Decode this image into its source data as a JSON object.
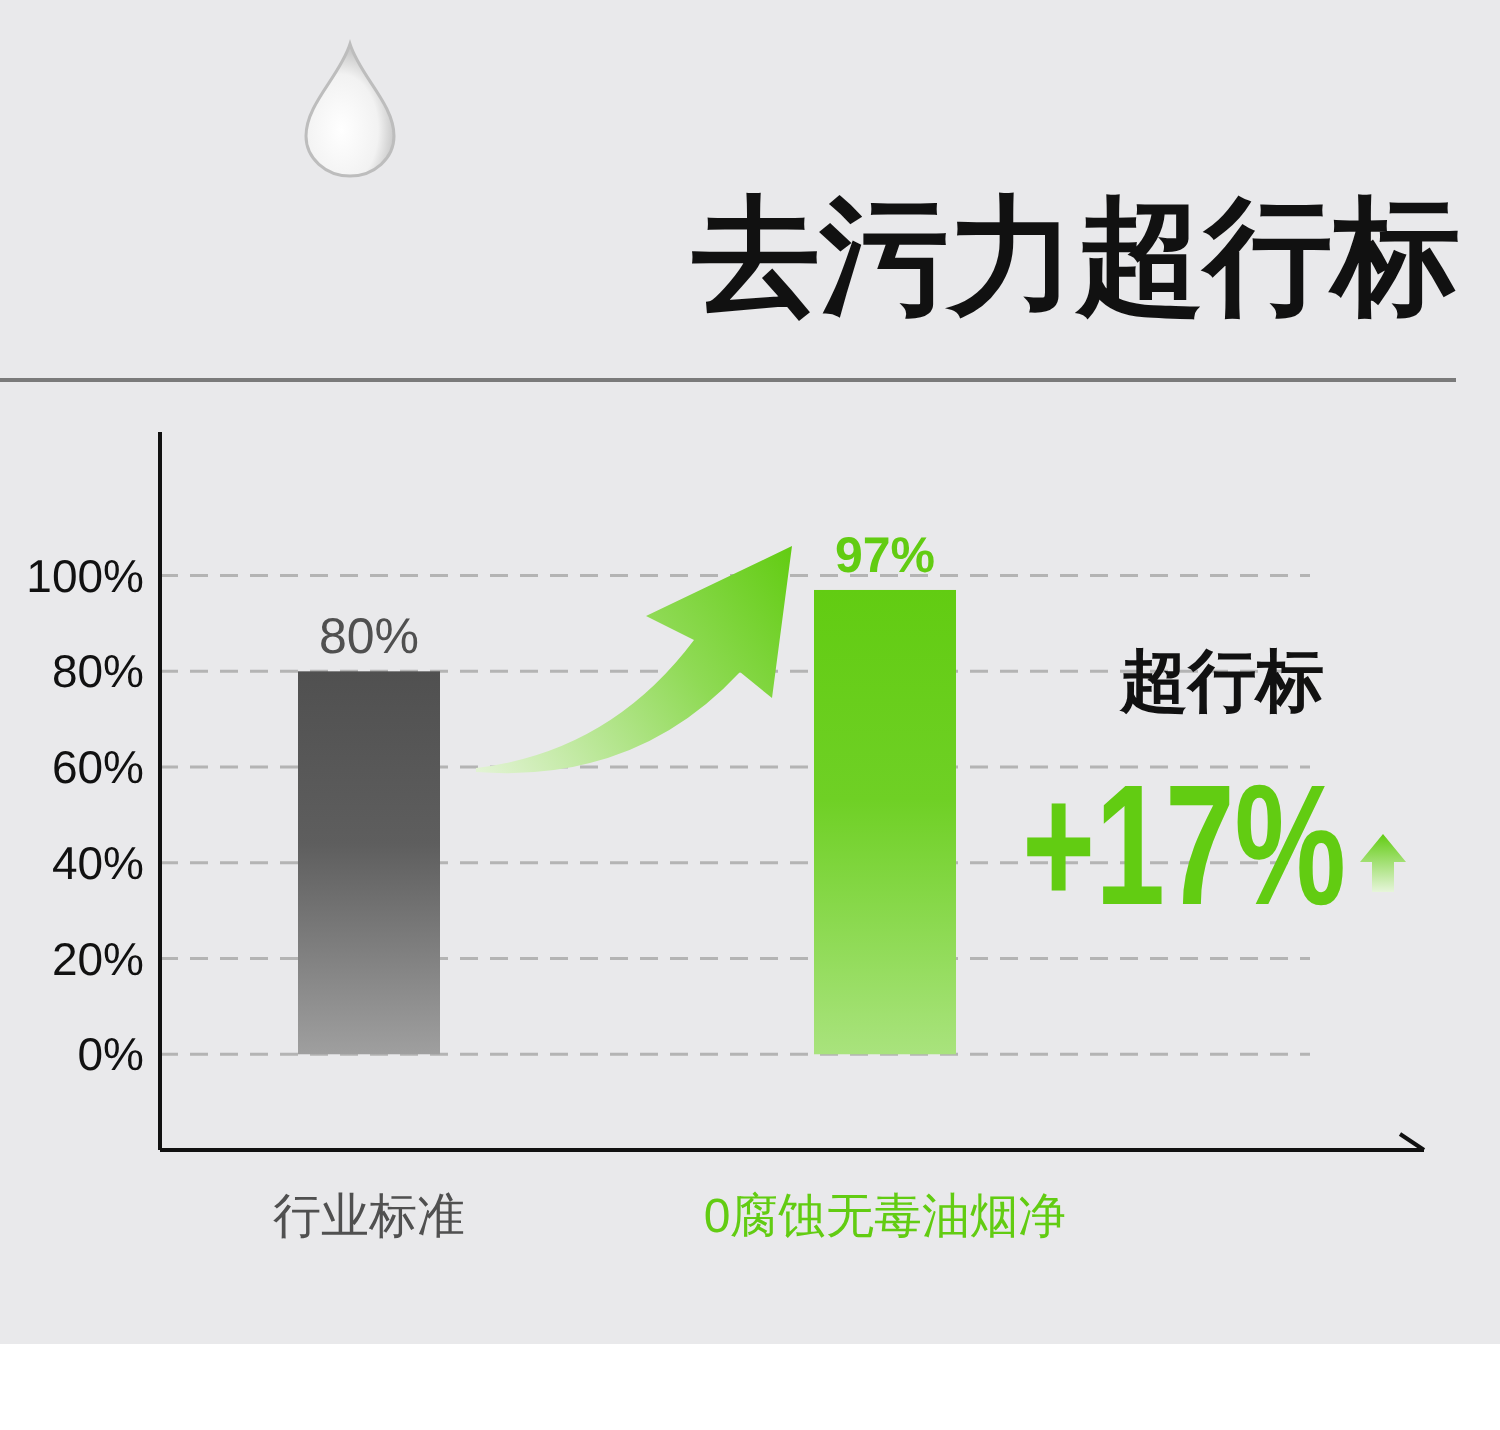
{
  "chart_data": {
    "type": "bar",
    "title": "去污力超行标",
    "categories": [
      "行业标准",
      "0腐蚀无毒油烟净"
    ],
    "values": [
      80,
      97
    ],
    "colors": [
      "#505050",
      "#62cc12"
    ],
    "value_labels": [
      "80%",
      "97%"
    ],
    "ylim": [
      -20,
      130
    ],
    "yticks": [
      {
        "value": 0,
        "label": "0%"
      },
      {
        "value": 20,
        "label": "20%"
      },
      {
        "value": 40,
        "label": "40%"
      },
      {
        "value": 60,
        "label": "60%"
      },
      {
        "value": 80,
        "label": "80%"
      },
      {
        "value": 100,
        "label": "100%"
      }
    ],
    "grid": "y",
    "annotations": [
      "超行标",
      "+17%"
    ]
  }
}
